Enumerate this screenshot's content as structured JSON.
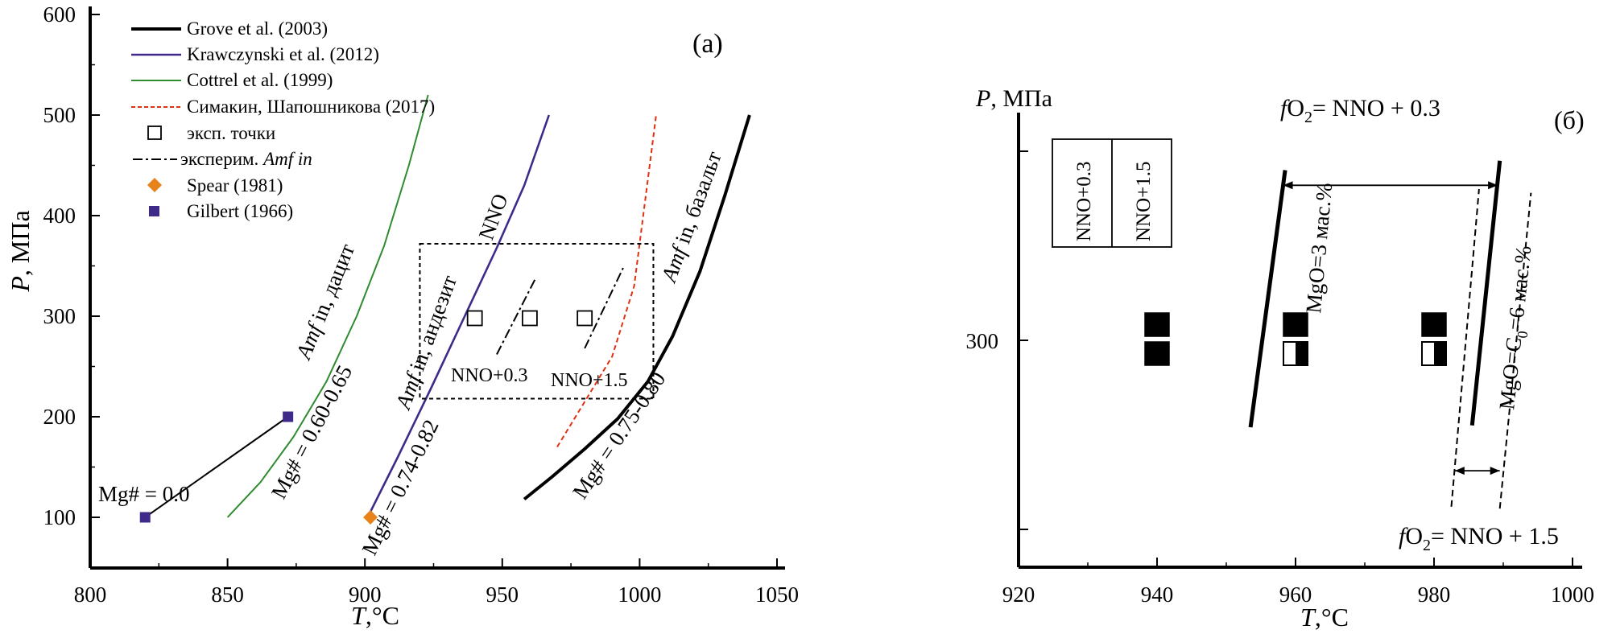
{
  "chart_data": [
    {
      "type": "line",
      "panel_label": "(a)",
      "xlabel": {
        "italic": "T",
        "rest": ",°C"
      },
      "ylabel": {
        "italic": "P",
        "rest": ", МПа"
      },
      "xlim": [
        800,
        1050
      ],
      "ylim": [
        50,
        600
      ],
      "xticks": [
        800,
        850,
        900,
        950,
        1000,
        1050
      ],
      "yticks": [
        100,
        200,
        300,
        400,
        500,
        600
      ],
      "legend": {
        "placement": "top-left",
        "entries": [
          {
            "label": "Grove et al. (2003)",
            "style": "thick-black"
          },
          {
            "label": "Krawczynski et al. (2012)",
            "style": "purple"
          },
          {
            "label": "Cottrel et al. (1999)",
            "style": "green"
          },
          {
            "label": "Симакин, Шапошникова (2017)",
            "style": "red-dashed"
          },
          {
            "label": "эксп. точки",
            "style": "open-square"
          },
          {
            "label_plain": "эксперим. ",
            "label_italic": "Amf in",
            "style": "dash-dot"
          },
          {
            "label": "Spear (1981)",
            "style": "orange-diamond"
          },
          {
            "label": "Gilbert (1966)",
            "style": "purple-square"
          }
        ]
      },
      "series": [
        {
          "legend_ref": 0,
          "color": "#000000",
          "points": [
            [
              958,
              118
            ],
            [
              968,
              140
            ],
            [
              980,
              168
            ],
            [
              992,
              198
            ],
            [
              1003,
              235
            ],
            [
              1012,
              280
            ],
            [
              1022,
              345
            ],
            [
              1031,
              420
            ],
            [
              1040,
              500
            ]
          ]
        },
        {
          "legend_ref": 1,
          "color": "#3f2a8a",
          "points": [
            [
              901,
              100
            ],
            [
              912,
              160
            ],
            [
              924,
              228
            ],
            [
              936,
              298
            ],
            [
              948,
              368
            ],
            [
              958,
              430
            ],
            [
              967,
              500
            ]
          ]
        },
        {
          "legend_ref": 2,
          "color": "#2e8b2e",
          "points": [
            [
              850,
              100
            ],
            [
              862,
              135
            ],
            [
              874,
              180
            ],
            [
              886,
              235
            ],
            [
              897,
              300
            ],
            [
              907,
              370
            ],
            [
              916,
              450
            ],
            [
              923,
              520
            ]
          ]
        },
        {
          "legend_ref": 3,
          "color": "#e03010",
          "points": [
            [
              970,
              170
            ],
            [
              980,
              215
            ],
            [
              990,
              260
            ],
            [
              998,
              330
            ],
            [
              1006,
              500
            ]
          ]
        }
      ],
      "dash_dot_segments": [
        [
          [
            948,
            262
          ],
          [
            962,
            337
          ]
        ],
        [
          [
            980,
            268
          ],
          [
            994,
            348
          ]
        ]
      ],
      "exp_points": [
        [
          940,
          298
        ],
        [
          960,
          298
        ],
        [
          980,
          298
        ]
      ],
      "spear_points": [
        [
          902,
          100
        ]
      ],
      "gilbert_points": [
        [
          820,
          100
        ],
        [
          872,
          200
        ]
      ],
      "box": {
        "x0": 920,
        "x1": 1005,
        "y0": 218,
        "y1": 372
      },
      "annotations": {
        "mg0": "Mg# = 0.0",
        "mg_dacite": "Mg# = 0.60-0.65",
        "mg_andesite": "Mg# = 0.74-0.82",
        "mg_basalt": "Mg# = 0.75-0.80",
        "amf_italic": "Amf",
        "amf_dacite": " in, дацит",
        "amf_andesite": " in, андезит",
        "amf_basalt": " in, базальт",
        "nno": "NNO",
        "nno03": "NNO+0.3",
        "nno15": "NNO+1.5"
      }
    },
    {
      "type": "scatter",
      "panel_label": "(б)",
      "xlabel": {
        "italic": "T",
        "rest": ",°C"
      },
      "ylabel": {
        "italic": "P",
        "rest": ", МПа"
      },
      "xlim": [
        920,
        1000
      ],
      "ylim": [
        180,
        420
      ],
      "xticks": [
        920,
        940,
        960,
        980,
        1000
      ],
      "yticks": [
        300
      ],
      "legend_box": [
        "NNO+0.3",
        "NNO+1.5"
      ],
      "squares": [
        {
          "x": 940,
          "upper": "filled",
          "lower": "filled"
        },
        {
          "x": 960,
          "upper": "filled",
          "lower": "half"
        },
        {
          "x": 980,
          "upper": "filled",
          "lower": "half"
        }
      ],
      "lines": [
        {
          "style": "thick-solid",
          "from": [
            953.5,
            254
          ],
          "to": [
            958.5,
            390
          ]
        },
        {
          "style": "thick-solid",
          "from": [
            985.5,
            255
          ],
          "to": [
            989.5,
            395
          ]
        },
        {
          "style": "dashed",
          "from": [
            982.5,
            212
          ],
          "to": [
            986.5,
            380
          ]
        },
        {
          "style": "dashed",
          "from": [
            989.5,
            211
          ],
          "to": [
            994.0,
            378
          ]
        }
      ],
      "arrows": [
        {
          "from": [
            958.2,
            382
          ],
          "to": [
            989.2,
            382
          ]
        },
        {
          "from": [
            983.0,
            231
          ],
          "to": [
            989.5,
            231
          ]
        }
      ],
      "annotations": {
        "fo2_top_f": "f",
        "fo2_top_o": "O",
        "fo2_top_sub": "2",
        "fo2_top_rest": "= NNO + 0.3",
        "fo2_bot_f": "f",
        "fo2_bot_o": "O",
        "fo2_bot_sub": "2",
        "fo2_bot_rest": "= NNO + 1.5",
        "mgo3": "MgO=3 мас.%",
        "mgo6_a": "MgO=C",
        "mgo6_sub": "0",
        "mgo6_b": "=6 мас.%"
      }
    }
  ]
}
